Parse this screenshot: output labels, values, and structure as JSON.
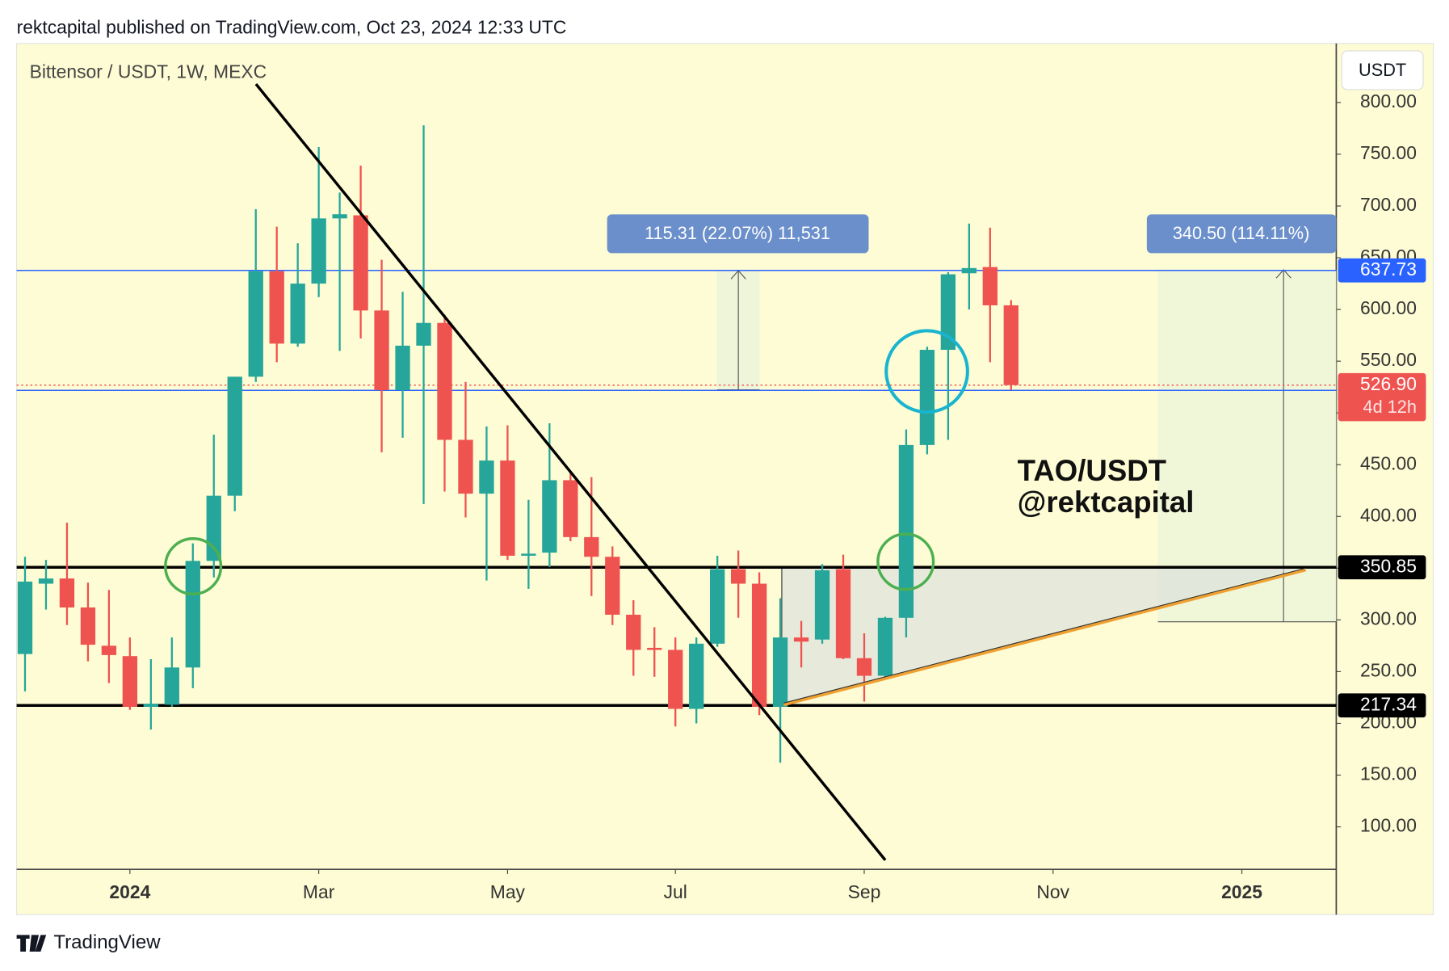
{
  "header": "rektcapital published on TradingView.com, Oct 23, 2024 12:33 UTC",
  "footer": "TradingView",
  "chart_data": {
    "type": "candlestick",
    "title": "Bittensor / USDT, 1W, MEXC",
    "currency": "USDT",
    "x": [
      0,
      1,
      2,
      3,
      4,
      5,
      6,
      7,
      8,
      9,
      10,
      11,
      12,
      13,
      14,
      15,
      16,
      17,
      18,
      19,
      20,
      21,
      22,
      23,
      24,
      25,
      26,
      27,
      28,
      29,
      30,
      31,
      32,
      33,
      34,
      35,
      36,
      37,
      38,
      39,
      40,
      41,
      42,
      43,
      44,
      45,
      46,
      47
    ],
    "open": [
      267,
      335,
      340,
      312,
      275,
      265,
      216,
      218,
      254,
      357,
      420,
      535,
      637,
      567,
      625,
      688,
      691,
      599,
      522,
      565,
      587,
      474,
      422,
      454,
      362,
      365,
      435,
      380,
      361,
      305,
      273,
      271,
      214,
      277,
      349,
      335,
      216,
      283,
      281,
      349,
      263,
      246,
      302,
      469,
      561,
      635,
      641,
      604
    ],
    "high": [
      361,
      358,
      394,
      336,
      329,
      283,
      262,
      283,
      374,
      479,
      535,
      697,
      680,
      664,
      757,
      713,
      739,
      648,
      617,
      778,
      595,
      530,
      487,
      488,
      416,
      490,
      443,
      438,
      371,
      319,
      293,
      283,
      283,
      362,
      367,
      346,
      321,
      299,
      354,
      363,
      287,
      303,
      484,
      564,
      636,
      683,
      679,
      609
    ],
    "low": [
      231,
      310,
      295,
      260,
      239,
      213,
      194,
      216,
      234,
      341,
      405,
      530,
      549,
      564,
      612,
      560,
      572,
      462,
      476,
      412,
      424,
      399,
      338,
      358,
      330,
      351,
      376,
      323,
      295,
      246,
      245,
      197,
      200,
      274,
      302,
      208,
      162,
      254,
      277,
      262,
      221,
      244,
      283,
      460,
      474,
      600,
      549,
      522
    ],
    "close": [
      337,
      340,
      312,
      276,
      266,
      216,
      219,
      254,
      357,
      420,
      535,
      637,
      567,
      625,
      688,
      692,
      599,
      522,
      565,
      587,
      474,
      422,
      454,
      362,
      364,
      435,
      380,
      361,
      305,
      271,
      271,
      214,
      277,
      349,
      335,
      216,
      283,
      279,
      348,
      263,
      246,
      302,
      469,
      561,
      634,
      640,
      604,
      526.9
    ],
    "up_color": "#26a69a",
    "down_color": "#ef5350",
    "xlim": [
      -0.4,
      62.5
    ],
    "xticks": [
      {
        "value": 5,
        "label": "2024"
      },
      {
        "value": 14,
        "label": "Mar"
      },
      {
        "value": 23,
        "label": "May"
      },
      {
        "value": 31,
        "label": "Jul"
      },
      {
        "value": 40,
        "label": "Sep"
      },
      {
        "value": 49,
        "label": "Nov"
      },
      {
        "value": 58,
        "label": "2025"
      }
    ],
    "ylim": [
      58.9,
      857.1
    ],
    "yticks": [
      {
        "value": 100,
        "label": "100.00"
      },
      {
        "value": 150,
        "label": "150.00"
      },
      {
        "value": 200,
        "label": "200.00"
      },
      {
        "value": 250,
        "label": "250.00"
      },
      {
        "value": 300,
        "label": "300.00"
      },
      {
        "value": 350,
        "label": "350.00"
      },
      {
        "value": 400,
        "label": "400.00"
      },
      {
        "value": 450,
        "label": "450.00"
      },
      {
        "value": 500,
        "label": "500.00"
      },
      {
        "value": 550,
        "label": "550.00"
      },
      {
        "value": 600,
        "label": "600.00"
      },
      {
        "value": 650,
        "label": "650.00"
      },
      {
        "value": 700,
        "label": "700.00"
      },
      {
        "value": 750,
        "label": "750.00"
      },
      {
        "value": 800,
        "label": "800.00"
      }
    ],
    "levels": [
      {
        "value": 637.73,
        "color": "#2962ff",
        "style": "solid"
      },
      {
        "value": 521.83,
        "color": "#2962ff",
        "style": "solid"
      },
      {
        "value": 350.85,
        "color": "#000000",
        "style": "thick"
      },
      {
        "value": 217.34,
        "color": "#000000",
        "style": "thick"
      },
      {
        "value": 526.9,
        "label": "526.90",
        "color": "#ef5350",
        "style": "dotted",
        "note": "4d 12h"
      }
    ],
    "annotations": [
      "115.31 (22.07%) 11,531",
      "340.50 (114.11%)",
      "TAO/USDT",
      "@rektcapital"
    ]
  }
}
